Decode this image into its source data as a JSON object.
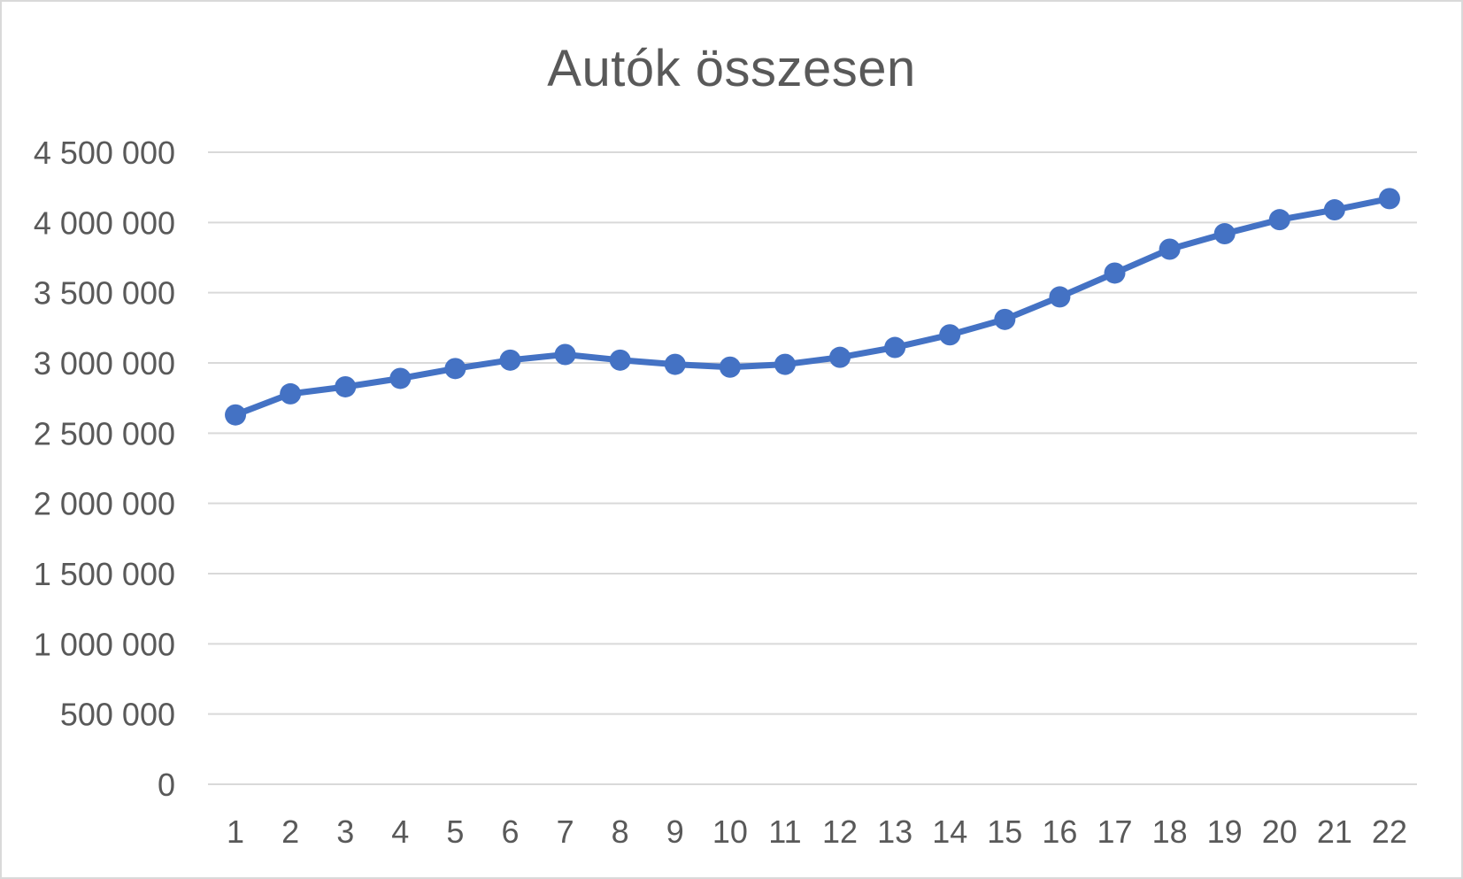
{
  "chart_data": {
    "type": "line",
    "title": "Autók összesen",
    "xlabel": "",
    "ylabel": "",
    "categories": [
      "1",
      "2",
      "3",
      "4",
      "5",
      "6",
      "7",
      "8",
      "9",
      "10",
      "11",
      "12",
      "13",
      "14",
      "15",
      "16",
      "17",
      "18",
      "19",
      "20",
      "21",
      "22"
    ],
    "series": [
      {
        "values": [
          2630000,
          2780000,
          2830000,
          2890000,
          2960000,
          3020000,
          3060000,
          3020000,
          2990000,
          2970000,
          2990000,
          3040000,
          3110000,
          3200000,
          3310000,
          3470000,
          3640000,
          3810000,
          3920000,
          4020000,
          4090000,
          4170000
        ]
      }
    ],
    "ylim": [
      0,
      4500000
    ],
    "yticks": [
      "0",
      "500 000",
      "1 000 000",
      "1 500 000",
      "2 000 000",
      "2 500 000",
      "3 000 000",
      "3 500 000",
      "4 000 000",
      "4 500 000"
    ],
    "ytick_values": [
      0,
      500000,
      1000000,
      1500000,
      2000000,
      2500000,
      3000000,
      3500000,
      4000000,
      4500000
    ],
    "grid": true,
    "legend": "none",
    "colors": {
      "series": "#4472c4",
      "grid": "#d9d9d9",
      "text": "#595959",
      "border": "#d9d9d9"
    }
  }
}
